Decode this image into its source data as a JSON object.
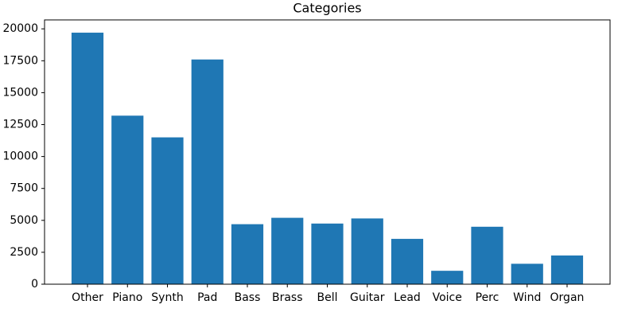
{
  "chart_data": {
    "type": "bar",
    "title": "Categories",
    "categories": [
      "Other",
      "Piano",
      "Synth",
      "Pad",
      "Bass",
      "Brass",
      "Bell",
      "Guitar",
      "Lead",
      "Voice",
      "Perc",
      "Wind",
      "Organ"
    ],
    "values": [
      19700,
      13200,
      11500,
      17600,
      4700,
      5200,
      4750,
      5150,
      3550,
      1050,
      4500,
      1600,
      2250
    ],
    "color": "#1f77b4",
    "ylim": [
      0,
      20700
    ],
    "yticks": [
      0,
      2500,
      5000,
      7500,
      10000,
      12500,
      15000,
      17500,
      20000
    ],
    "grid": false
  }
}
